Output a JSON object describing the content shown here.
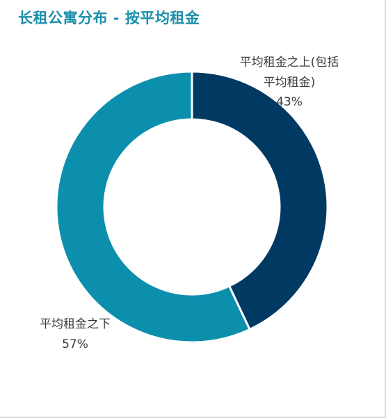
{
  "chart_data": {
    "type": "pie",
    "title": "长租公寓分布 - 按平均租金",
    "slices": [
      {
        "label_lines": [
          "平均租金之上(包括",
          "平均租金)"
        ],
        "value": 43,
        "value_label": "43%",
        "color": "#003a63"
      },
      {
        "label_lines": [
          "平均租金之下"
        ],
        "value": 57,
        "value_label": "57%",
        "color": "#0b8fad"
      }
    ],
    "donut": true,
    "legend": "none",
    "data_labels": "outside"
  }
}
